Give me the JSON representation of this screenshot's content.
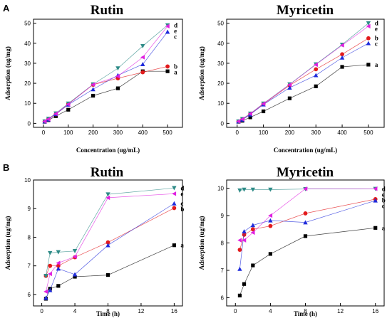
{
  "panels": [
    {
      "letter": "A"
    },
    {
      "letter": "B"
    }
  ],
  "chart_data": [
    {
      "type": "line",
      "title": "Rutin",
      "xlabel": "Concentration (ug/mL)",
      "ylabel": "Adsorption (ug/mg)",
      "xlim": [
        -40,
        560
      ],
      "ylim": [
        -2,
        52
      ],
      "xticks": [
        0,
        100,
        200,
        300,
        400,
        500
      ],
      "yticks": [
        0,
        10,
        20,
        30,
        40,
        50
      ],
      "grid": false,
      "series": [
        {
          "name": "a",
          "color": "#000000",
          "marker": "square",
          "x": [
            5,
            20,
            50,
            100,
            200,
            300,
            400,
            500
          ],
          "y": [
            0.8,
            1.6,
            3.6,
            6.8,
            13.8,
            17.5,
            26.0,
            26.0
          ]
        },
        {
          "name": "b",
          "color": "#e31a1c",
          "marker": "circle",
          "x": [
            5,
            20,
            50,
            100,
            200,
            300,
            400,
            500
          ],
          "y": [
            0.9,
            2.0,
            4.5,
            9.6,
            19.3,
            22.5,
            25.5,
            28.4
          ]
        },
        {
          "name": "c",
          "color": "#1f2bdb",
          "marker": "triangle-up",
          "x": [
            5,
            20,
            50,
            100,
            200,
            300,
            400,
            500
          ],
          "y": [
            0.9,
            1.9,
            4.6,
            9.3,
            17.0,
            24.0,
            29.5,
            45.7
          ]
        },
        {
          "name": "d",
          "color": "#2e8b87",
          "marker": "triangle-down",
          "x": [
            5,
            20,
            50,
            100,
            200,
            300,
            400,
            500
          ],
          "y": [
            1.0,
            2.3,
            5.0,
            9.9,
            19.5,
            27.5,
            38.6,
            49.0
          ]
        },
        {
          "name": "e",
          "color": "#e020e0",
          "marker": "triangle-left",
          "x": [
            5,
            20,
            50,
            100,
            200,
            300,
            400,
            500
          ],
          "y": [
            1.0,
            2.1,
            4.8,
            9.5,
            19.4,
            23.5,
            33.0,
            48.5
          ]
        }
      ]
    },
    {
      "type": "line",
      "title": "Myricetin",
      "xlabel": "Concentration (ug/mL)",
      "ylabel": "Adsorption (ug/mg)",
      "xlim": [
        -40,
        560
      ],
      "ylim": [
        -2,
        52
      ],
      "xticks": [
        0,
        100,
        200,
        300,
        400,
        500
      ],
      "yticks": [
        0,
        10,
        20,
        30,
        40,
        50
      ],
      "grid": false,
      "series": [
        {
          "name": "a",
          "color": "#000000",
          "marker": "square",
          "x": [
            5,
            20,
            50,
            100,
            200,
            300,
            400,
            500
          ],
          "y": [
            0.8,
            1.3,
            3.0,
            6.0,
            12.5,
            18.5,
            28.2,
            29.3
          ]
        },
        {
          "name": "b",
          "color": "#e31a1c",
          "marker": "circle",
          "x": [
            5,
            20,
            50,
            100,
            200,
            300,
            400,
            500
          ],
          "y": [
            0.9,
            2.0,
            4.6,
            9.6,
            19.0,
            27.0,
            34.5,
            42.5
          ]
        },
        {
          "name": "c",
          "color": "#1f2bdb",
          "marker": "triangle-up",
          "x": [
            5,
            20,
            50,
            100,
            200,
            300,
            400,
            500
          ],
          "y": [
            0.9,
            1.8,
            4.4,
            9.4,
            17.8,
            24.0,
            32.8,
            40.0
          ]
        },
        {
          "name": "d",
          "color": "#2e8b87",
          "marker": "triangle-down",
          "x": [
            5,
            20,
            50,
            100,
            200,
            300,
            400,
            500
          ],
          "y": [
            1.0,
            2.2,
            4.9,
            9.9,
            19.5,
            29.5,
            39.3,
            50.0
          ]
        },
        {
          "name": "e",
          "color": "#e020e0",
          "marker": "triangle-left",
          "x": [
            5,
            20,
            50,
            100,
            200,
            300,
            400,
            500
          ],
          "y": [
            1.0,
            2.1,
            4.8,
            9.8,
            19.3,
            29.3,
            39.0,
            48.5
          ]
        }
      ]
    },
    {
      "type": "line",
      "title": "Rutin",
      "xlabel": "Time (h)",
      "ylabel": "Adsorption (ug/mg)",
      "xlim": [
        -1,
        17
      ],
      "ylim": [
        5.6,
        10
      ],
      "xticks": [
        0,
        4,
        8,
        12,
        16
      ],
      "yticks": [
        6,
        7,
        8,
        9,
        10
      ],
      "grid": false,
      "series": [
        {
          "name": "a",
          "color": "#000000",
          "marker": "square",
          "x": [
            0.5,
            1,
            2,
            4,
            8,
            16
          ],
          "y": [
            5.85,
            6.2,
            6.3,
            6.62,
            6.68,
            7.72
          ]
        },
        {
          "name": "b",
          "color": "#e31a1c",
          "marker": "circle",
          "x": [
            0.5,
            1,
            2,
            4,
            8,
            16
          ],
          "y": [
            6.65,
            7.0,
            7.0,
            7.3,
            7.82,
            9.02
          ]
        },
        {
          "name": "c",
          "color": "#1f2bdb",
          "marker": "triangle-up",
          "x": [
            0.5,
            1,
            2,
            4,
            8,
            16
          ],
          "y": [
            5.88,
            6.15,
            6.9,
            6.7,
            7.72,
            9.18
          ]
        },
        {
          "name": "d",
          "color": "#2e8b87",
          "marker": "triangle-down",
          "x": [
            0.5,
            1,
            2,
            4,
            8,
            16
          ],
          "y": [
            6.65,
            7.45,
            7.48,
            7.52,
            9.5,
            9.72
          ]
        },
        {
          "name": "e",
          "color": "#e020e0",
          "marker": "triangle-left",
          "x": [
            0.5,
            1,
            2,
            4,
            8,
            16
          ],
          "y": [
            6.1,
            6.72,
            7.1,
            7.32,
            9.38,
            9.52
          ]
        }
      ]
    },
    {
      "type": "line",
      "title": "Myricetin",
      "xlabel": "Time (h)",
      "ylabel": "Adsorption (ug/mg)",
      "xlim": [
        -1,
        17
      ],
      "ylim": [
        5.7,
        10.3
      ],
      "xticks": [
        0,
        4,
        8,
        12,
        16
      ],
      "yticks": [
        6,
        7,
        8,
        9,
        10
      ],
      "grid": false,
      "series": [
        {
          "name": "a",
          "color": "#000000",
          "marker": "square",
          "x": [
            0.5,
            1,
            2,
            4,
            8,
            16
          ],
          "y": [
            6.08,
            6.5,
            7.18,
            7.6,
            8.25,
            8.55
          ]
        },
        {
          "name": "b",
          "color": "#e31a1c",
          "marker": "circle",
          "x": [
            0.5,
            1,
            2,
            4,
            8,
            16
          ],
          "y": [
            7.75,
            8.3,
            8.5,
            8.62,
            9.08,
            9.6
          ]
        },
        {
          "name": "c",
          "color": "#1f2bdb",
          "marker": "triangle-up",
          "x": [
            0.5,
            1,
            2,
            4,
            8,
            16
          ],
          "y": [
            7.05,
            8.42,
            8.65,
            8.82,
            8.75,
            9.55
          ]
        },
        {
          "name": "d",
          "color": "#2e8b87",
          "marker": "triangle-down",
          "x": [
            0.5,
            1,
            2,
            4,
            8,
            16
          ],
          "y": [
            9.92,
            9.95,
            9.95,
            9.95,
            9.97,
            9.98
          ]
        },
        {
          "name": "e",
          "color": "#e020e0",
          "marker": "triangle-left",
          "x": [
            0.5,
            1,
            2,
            4,
            8,
            16
          ],
          "y": [
            8.1,
            8.1,
            8.38,
            9.0,
            9.98,
            9.98
          ]
        }
      ]
    }
  ]
}
